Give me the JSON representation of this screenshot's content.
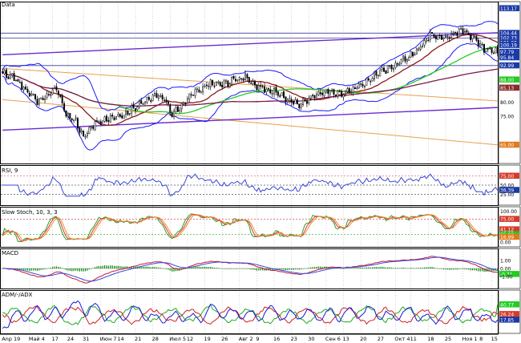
{
  "panels": {
    "price": "Data",
    "rsi": "RSI, 9",
    "stoch": "Slow Stoch, 10, 3, 3",
    "macd": "MACD",
    "adx": "ADM/-/ADX"
  },
  "x_axis": {
    "labels": [
      {
        "i": 0,
        "t": "Anp 19"
      },
      {
        "i": 14,
        "t": "Май 4"
      },
      {
        "i": 26,
        "t": "17"
      },
      {
        "i": 34,
        "t": "24"
      },
      {
        "i": 42,
        "t": "31"
      },
      {
        "i": 51,
        "t": "Июн 7"
      },
      {
        "i": 60,
        "t": "14"
      },
      {
        "i": 69,
        "t": "21"
      },
      {
        "i": 78,
        "t": "28"
      },
      {
        "i": 87,
        "t": "Июл 5"
      },
      {
        "i": 96,
        "t": "12"
      },
      {
        "i": 105,
        "t": "19"
      },
      {
        "i": 114,
        "t": "26"
      },
      {
        "i": 123,
        "t": "Авг 2"
      },
      {
        "i": 132,
        "t": "9"
      },
      {
        "i": 141,
        "t": "16"
      },
      {
        "i": 150,
        "t": "23"
      },
      {
        "i": 159,
        "t": "30"
      },
      {
        "i": 168,
        "t": "Сен 6"
      },
      {
        "i": 177,
        "t": "13"
      },
      {
        "i": 186,
        "t": "20"
      },
      {
        "i": 195,
        "t": "27"
      },
      {
        "i": 204,
        "t": "Окт 4"
      },
      {
        "i": 212,
        "t": "11"
      },
      {
        "i": 221,
        "t": "18"
      },
      {
        "i": 230,
        "t": "25"
      },
      {
        "i": 239,
        "t": "Ноя 1"
      },
      {
        "i": 248,
        "t": "8"
      },
      {
        "i": 254,
        "t": "15"
      }
    ]
  },
  "colors": {
    "candle_up": "#ffffff",
    "candle_down": "#000000",
    "bollinger": "#1a1aff",
    "ma_short": "#8b1a1a",
    "ma_mid": "#22cc22",
    "ma_long": "#7a1a4a",
    "channel": "#6a2ad0",
    "fib": "#e8a050",
    "hline": "#3a3a9a",
    "rsi": "#3a46d8",
    "stoch_k": "#2aa02a",
    "stoch_d": "#d83a2a",
    "stoch_k2": "#f08c3a",
    "macd_line": "#c01a3a",
    "macd_signal": "#3a46d8",
    "macd_hist": "#0a8a0a",
    "adx_plus": "#22aa22",
    "adx_minus": "#d02020",
    "adx": "#1a1ad8"
  },
  "chart_data": [
    {
      "type": "candlestick",
      "title": "Data",
      "ylim": [
        59,
        115
      ],
      "y_ticks": [
        {
          "v": 113.17,
          "t": "113.17",
          "style": "box"
        },
        {
          "v": 104.44,
          "t": "104.44",
          "style": "hl"
        },
        {
          "v": 102.73,
          "t": "102.73",
          "style": "hl"
        },
        {
          "v": 101.09,
          "t": "101.09",
          "style": "hl"
        },
        {
          "v": 100.19,
          "t": "100.19",
          "style": "hl"
        },
        {
          "v": 97.79,
          "t": "97.79",
          "style": "hl"
        },
        {
          "v": 95.84,
          "t": "95.84",
          "style": "hl"
        },
        {
          "v": 92.99,
          "t": "92.99",
          "style": "hl"
        },
        {
          "v": 88.0,
          "t": "88.00",
          "style": "green"
        },
        {
          "v": 85.13,
          "t": "85.13",
          "style": "maroon"
        },
        {
          "v": 80.0,
          "t": "80.00",
          "style": "plain"
        },
        {
          "v": 75.0,
          "t": "75.00",
          "style": "plain"
        },
        {
          "v": 65.0,
          "t": "65.00",
          "style": "orange"
        }
      ],
      "hlines": [
        104.44,
        102.73,
        92.99
      ],
      "channel_upper": [
        [
          0,
          96.8
        ],
        [
          257,
          104.6
        ]
      ],
      "channel_lower": [
        [
          0,
          70.2
        ],
        [
          257,
          78.2
        ]
      ],
      "fib_lines": [
        [
          [
            0,
            92.0
          ],
          [
            257,
            80.5
          ]
        ],
        [
          [
            0,
            81.0
          ],
          [
            257,
            65.0
          ]
        ]
      ],
      "ma_mid_end": 88.0,
      "ma_long_end": 85.13,
      "anchors": [
        [
          0,
          90.0
        ],
        [
          6,
          88.8
        ],
        [
          12,
          84.0
        ],
        [
          18,
          80.5
        ],
        [
          22,
          82.0
        ],
        [
          28,
          85.0
        ],
        [
          33,
          76.0
        ],
        [
          38,
          73.0
        ],
        [
          42,
          68.0
        ],
        [
          48,
          73.0
        ],
        [
          55,
          74.0
        ],
        [
          62,
          75.0
        ],
        [
          68,
          78.0
        ],
        [
          74,
          80.5
        ],
        [
          80,
          83.0
        ],
        [
          84,
          81.0
        ],
        [
          88,
          76.0
        ],
        [
          92,
          78.0
        ],
        [
          98,
          83.0
        ],
        [
          104,
          85.5
        ],
        [
          110,
          87.0
        ],
        [
          116,
          86.5
        ],
        [
          122,
          88.5
        ],
        [
          126,
          89.0
        ],
        [
          130,
          86.0
        ],
        [
          136,
          85.0
        ],
        [
          142,
          83.5
        ],
        [
          148,
          81.0
        ],
        [
          154,
          79.0
        ],
        [
          158,
          81.0
        ],
        [
          164,
          83.0
        ],
        [
          170,
          84.0
        ],
        [
          176,
          83.0
        ],
        [
          182,
          85.0
        ],
        [
          188,
          87.0
        ],
        [
          194,
          90.0
        ],
        [
          198,
          91.0
        ],
        [
          204,
          93.5
        ],
        [
          210,
          95.5
        ],
        [
          214,
          98.0
        ],
        [
          218,
          100.5
        ],
        [
          222,
          104.0
        ],
        [
          226,
          103.0
        ],
        [
          230,
          102.5
        ],
        [
          234,
          104.0
        ],
        [
          238,
          105.5
        ],
        [
          242,
          104.0
        ],
        [
          246,
          102.0
        ],
        [
          250,
          99.0
        ],
        [
          254,
          98.0
        ],
        [
          257,
          97.6
        ]
      ]
    },
    {
      "type": "line",
      "title": "RSI, 9",
      "ylim": [
        0,
        100
      ],
      "y_ticks": [
        {
          "v": 75,
          "t": "75.00",
          "style": "red"
        },
        {
          "v": 50,
          "t": "50.00",
          "style": "plain"
        },
        {
          "v": 36.39,
          "t": "36.39",
          "style": "blue"
        },
        {
          "v": 25,
          "t": "25.00",
          "style": "plain"
        }
      ],
      "levels": [
        75,
        50,
        25
      ],
      "last_value": 36.39
    },
    {
      "type": "line",
      "title": "Slow Stoch, 10, 3, 3",
      "ylim": [
        -10,
        110
      ],
      "y_ticks": [
        {
          "v": 100,
          "t": "100.00",
          "style": "plain"
        },
        {
          "v": 75,
          "t": "75.00",
          "style": "red"
        },
        {
          "v": 41.12,
          "t": "41.12",
          "style": "red"
        },
        {
          "v": 25,
          "t": "25.00",
          "style": "green"
        },
        {
          "v": 16.99,
          "t": "16.99",
          "style": "orange"
        },
        {
          "v": 0,
          "t": "0.00",
          "style": "plain"
        }
      ],
      "levels": [
        75,
        25
      ]
    },
    {
      "type": "bar",
      "title": "MACD",
      "ylim": [
        -2.3,
        2.3
      ],
      "y_ticks": [
        {
          "v": 1.0,
          "t": "1.00",
          "style": "plain"
        },
        {
          "v": 0.0,
          "t": "0.00",
          "style": "plain"
        },
        {
          "v": -0.71,
          "t": "-0.71",
          "style": "green"
        },
        {
          "v": -1.0,
          "t": "-1.00",
          "style": "plain"
        }
      ]
    },
    {
      "type": "line",
      "title": "ADM/-/ADX",
      "ylim": [
        0,
        60
      ],
      "y_ticks": [
        {
          "v": 40.77,
          "t": "40.77",
          "style": "green"
        },
        {
          "v": 26.24,
          "t": "26.24",
          "style": "red"
        },
        {
          "v": 17.85,
          "t": "17.85",
          "style": "blue"
        }
      ]
    }
  ]
}
